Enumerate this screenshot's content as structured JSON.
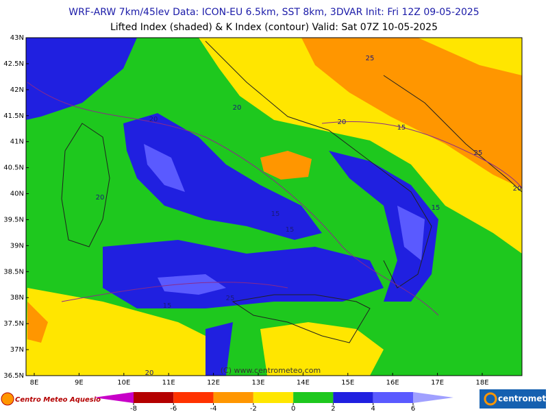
{
  "header": {
    "line1": "WRF-ARW 7km/45lev   Data: ICON-EU 6.5km, SST 8km, 3DVAR   Init: Fri 12Z 09-05-2025",
    "line2": "Lifted Index (shaded) & K Index (contour)  Valid: Sat 07Z 10-05-2025"
  },
  "map": {
    "lat_labels": [
      "43N",
      "42.5N",
      "42N",
      "41.5N",
      "41N",
      "40.5N",
      "40N",
      "39.5N",
      "39N",
      "38.5N",
      "38N",
      "37.5N",
      "37N",
      "36.5N"
    ],
    "lon_labels": [
      "8E",
      "9E",
      "10E",
      "11E",
      "12E",
      "13E",
      "14E",
      "15E",
      "16E",
      "17E",
      "18E"
    ],
    "contour_labels": [
      25,
      20,
      20,
      20,
      15,
      25,
      20,
      20,
      15,
      15,
      15,
      15,
      25,
      20
    ],
    "copyright": "(C) www.centrometeo.com"
  },
  "colorbar": {
    "ticks": [
      -8,
      -6,
      -4,
      -2,
      0,
      2,
      4,
      6
    ],
    "colors": [
      "#c800c8",
      "#b40000",
      "#ff3200",
      "#ff9600",
      "#ffe600",
      "#1ec81e",
      "#2020e0",
      "#5a5aff",
      "#a0a0ff"
    ]
  },
  "logos": {
    "left": "Centro Meteo Aquesio",
    "right": "centrometeo"
  }
}
